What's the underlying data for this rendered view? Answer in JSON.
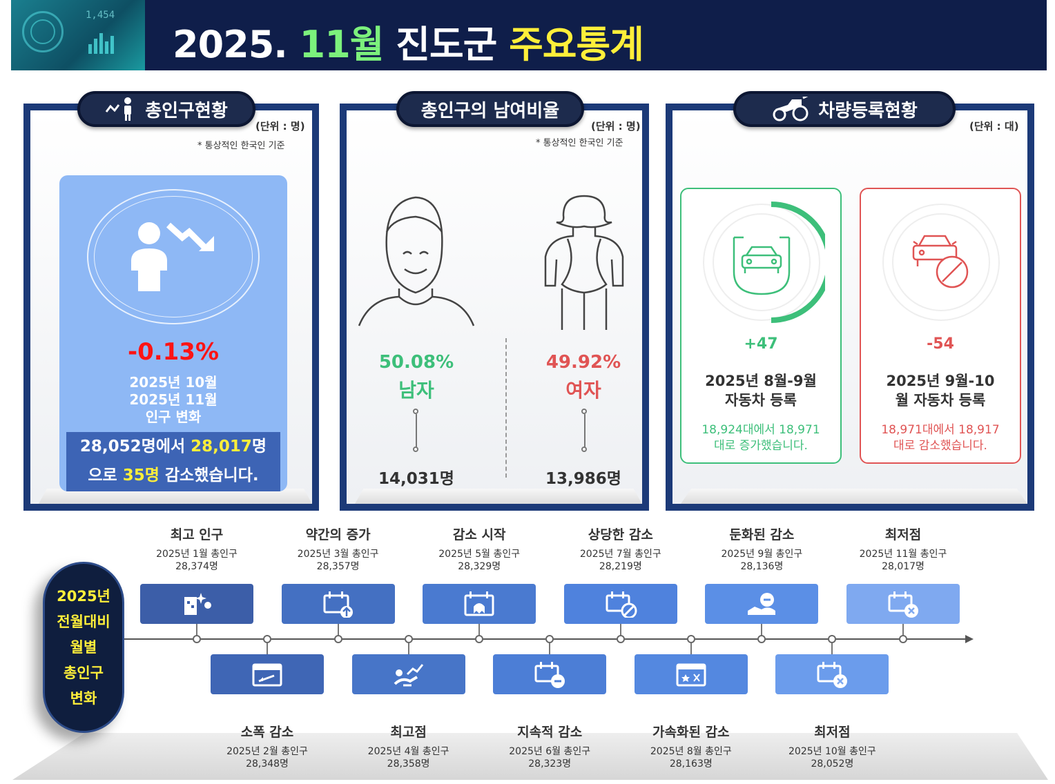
{
  "header": {
    "title_year": "2025.",
    "title_month": "11월",
    "title_region": "진도군",
    "title_main": "주요통계",
    "thumb_number": "1,454"
  },
  "colors": {
    "navy": "#0f1e4a",
    "male": "#3dbf7a",
    "female": "#e05454",
    "decrease_red": "#ff1414",
    "highlight_yellow": "#ffef3a"
  },
  "population": {
    "title": "총인구현황",
    "unit": "(단위 : 명)",
    "note": "* 통상적인 한국인 기준",
    "change_pct": "-0.13%",
    "sub1": "2025년 10월",
    "sub2": "2025년 11월",
    "sub3": "인구 변화",
    "line1_a": "28,052명에서 ",
    "line1_b": "28,017",
    "line1_c": "명",
    "line2_a": "으로 ",
    "line2_b": "35명",
    "line2_c": " 감소했습니다."
  },
  "gender": {
    "title": "총인구의 남여비율",
    "unit": "(단위 : 명)",
    "note": "* 통상적인 한국인 기준",
    "male_pct": "50.08%",
    "male_label": "남자",
    "male_count": "14,031명",
    "female_pct": "49.92%",
    "female_label": "여자",
    "female_count": "13,986명"
  },
  "vehicle": {
    "title": "차량등록현황",
    "unit": "(단위 : 대)",
    "left": {
      "delta": "+47",
      "title1": "2025년 8월-9월",
      "title2": "자동차 등록",
      "desc1": "18,924대에서 18,971",
      "desc2": "대로 증가했습니다."
    },
    "right": {
      "delta": "-54",
      "title1": "2025년 9월-10",
      "title2": "월 자동차 등록",
      "desc1": "18,971대에서 18,917",
      "desc2": "대로 감소했습니다."
    }
  },
  "timeline": {
    "side_lines": [
      "2025년",
      "전월대비",
      "월별",
      "총인구",
      "변화"
    ],
    "top": [
      {
        "title": "최고 인구",
        "period": "2025년 1월 총인구",
        "value": "28,374명",
        "icon": "building-sparkle-icon",
        "color": "#3c5ea8"
      },
      {
        "title": "약간의 증가",
        "period": "2025년 3월 총인구",
        "value": "28,357명",
        "icon": "calendar-up-icon",
        "color": "#4470c2"
      },
      {
        "title": "감소 시작",
        "period": "2025년 5월 총인구",
        "value": "28,329명",
        "icon": "calendar-ghost-icon",
        "color": "#4a7ad0"
      },
      {
        "title": "상당한 감소",
        "period": "2025년 7월 총인구",
        "value": "28,219명",
        "icon": "calendar-ban-icon",
        "color": "#4f82dd"
      },
      {
        "title": "둔화된 감소",
        "period": "2025년 9월 총인구",
        "value": "28,136명",
        "icon": "hand-coin-icon",
        "color": "#5b8fe6"
      },
      {
        "title": "최저점",
        "period": "2025년 11월 총인구",
        "value": "28,017명",
        "icon": "calendar-x-icon",
        "color": "#7fa9f0"
      }
    ],
    "bottom": [
      {
        "title": "소폭 감소",
        "period": "2025년 2월 총인구",
        "value": "28,348명",
        "icon": "calendar-arrow-icon",
        "color": "#3f66b5"
      },
      {
        "title": "최고점",
        "period": "2025년 4월 총인구",
        "value": "28,358명",
        "icon": "runner-icon",
        "color": "#4775c8"
      },
      {
        "title": "지속적 감소",
        "period": "2025년 6월 총인구",
        "value": "28,323명",
        "icon": "calendar-minus-icon",
        "color": "#4c7ed6"
      },
      {
        "title": "가속화된 감소",
        "period": "2025년 8월 총인구",
        "value": "28,163명",
        "icon": "calendar-star-icon",
        "color": "#5488e0"
      },
      {
        "title": "최저점",
        "period": "2025년 10월 총인구",
        "value": "28,052명",
        "icon": "calendar-x-icon",
        "color": "#6b9cec"
      }
    ]
  }
}
